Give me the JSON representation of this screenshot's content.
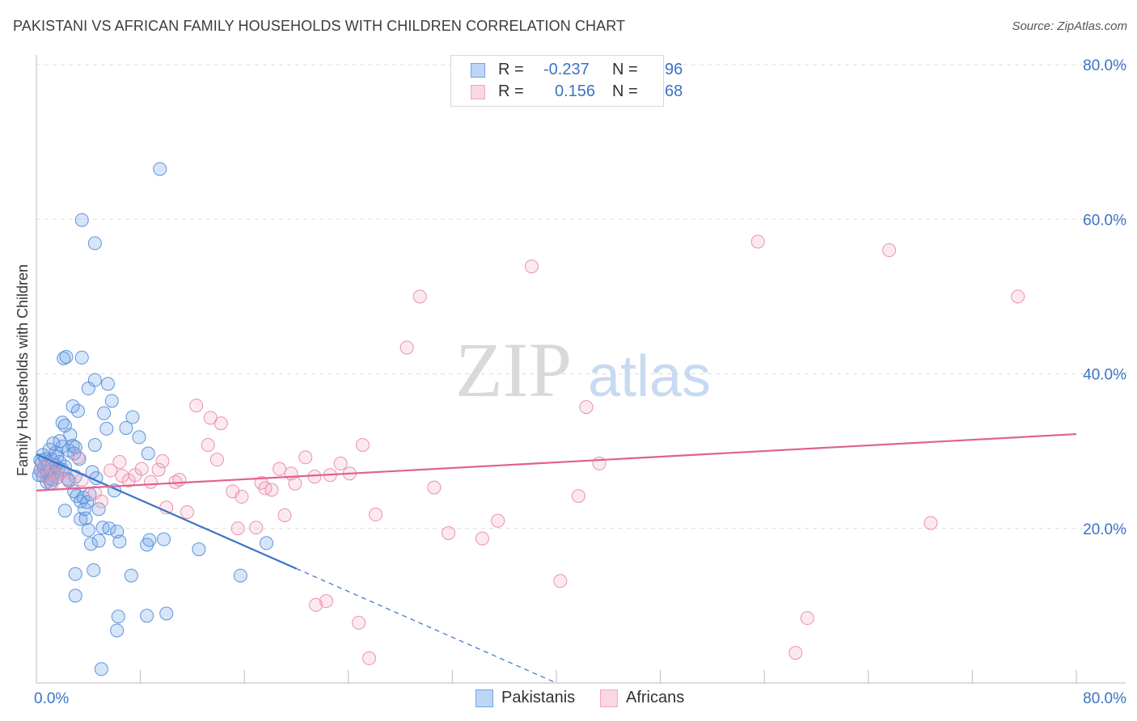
{
  "header": {
    "title": "PAKISTANI VS AFRICAN FAMILY HOUSEHOLDS WITH CHILDREN CORRELATION CHART",
    "source": "Source: ZipAtlas.com"
  },
  "watermark": {
    "zip": "ZIP",
    "atlas": "atlas"
  },
  "legend": {
    "r_label": "R =",
    "n_label": "N =",
    "rows": [
      {
        "r": "-0.237",
        "n": "96",
        "color": "#6fa3e8"
      },
      {
        "r": "0.156",
        "n": "68",
        "color": "#f4a7bf"
      }
    ]
  },
  "bottom_legend": {
    "pakistanis": "Pakistanis",
    "africans": "Africans"
  },
  "colors": {
    "pakistani_fill": "rgba(111,163,232,0.28)",
    "pakistani_stroke": "#5d93dc",
    "african_fill": "rgba(244,167,191,0.25)",
    "african_stroke": "#e892ad",
    "pakistani_line": "#3a73c9",
    "african_line": "#e0628b",
    "axis_label_color": "#3a73c4",
    "grid": "#dcdcdc"
  },
  "chart_data": {
    "type": "scatter",
    "title": "PAKISTANI VS AFRICAN FAMILY HOUSEHOLDS WITH CHILDREN CORRELATION CHART",
    "xlabel": "",
    "ylabel": "Family Households with Children",
    "xlim": [
      0,
      80
    ],
    "ylim": [
      0,
      80
    ],
    "x_tick_labels": [
      "0.0%",
      "80.0%"
    ],
    "y_tick_labels": [
      "20.0%",
      "40.0%",
      "60.0%",
      "80.0%"
    ],
    "y_ticks": [
      20,
      40,
      60,
      80
    ],
    "grid": true,
    "legend_placement": "top-center",
    "series": [
      {
        "name": "Pakistanis",
        "r": -0.237,
        "n": 96,
        "trend": {
          "x_start": 0,
          "y_start": 29.6,
          "x_solid_end": 20,
          "x_end": 40,
          "y_end": 0
        },
        "points": [
          [
            0.3,
            27.5
          ],
          [
            0.4,
            28.5
          ],
          [
            0.5,
            26.8
          ],
          [
            0.6,
            27.9
          ],
          [
            0.7,
            29.0
          ],
          [
            0.8,
            27.2
          ],
          [
            0.9,
            28.3
          ],
          [
            1.0,
            26.5
          ],
          [
            1.1,
            27.7
          ],
          [
            1.2,
            28.9
          ],
          [
            1.3,
            26.9
          ],
          [
            1.4,
            27.4
          ],
          [
            1.5,
            28.1
          ],
          [
            1.6,
            26.6
          ],
          [
            1.7,
            27.8
          ],
          [
            1.8,
            28.6
          ],
          [
            0.5,
            29.5
          ],
          [
            1.0,
            30.2
          ],
          [
            1.5,
            29.8
          ],
          [
            2.0,
            27.6
          ],
          [
            2.2,
            28.0
          ],
          [
            2.4,
            26.4
          ],
          [
            0.8,
            26.0
          ],
          [
            1.2,
            26.3
          ],
          [
            2.0,
            30.6
          ],
          [
            2.5,
            30.1
          ],
          [
            2.8,
            30.7
          ],
          [
            3.0,
            30.5
          ],
          [
            2.9,
            29.7
          ],
          [
            1.8,
            31.3
          ],
          [
            1.3,
            31.0
          ],
          [
            2.6,
            32.1
          ],
          [
            2.0,
            33.7
          ],
          [
            2.2,
            33.3
          ],
          [
            2.8,
            35.8
          ],
          [
            3.2,
            35.2
          ],
          [
            4.0,
            38.1
          ],
          [
            4.5,
            39.2
          ],
          [
            5.5,
            38.7
          ],
          [
            5.8,
            36.5
          ],
          [
            5.2,
            34.9
          ],
          [
            5.4,
            32.9
          ],
          [
            6.9,
            33.0
          ],
          [
            7.4,
            34.4
          ],
          [
            7.9,
            31.8
          ],
          [
            4.5,
            30.8
          ],
          [
            2.1,
            42.0
          ],
          [
            2.3,
            42.2
          ],
          [
            3.5,
            42.1
          ],
          [
            4.3,
            27.3
          ],
          [
            4.6,
            26.5
          ],
          [
            3.0,
            26.7
          ],
          [
            3.1,
            24.2
          ],
          [
            3.6,
            24.0
          ],
          [
            3.4,
            23.5
          ],
          [
            3.9,
            23.4
          ],
          [
            2.2,
            22.3
          ],
          [
            3.7,
            22.5
          ],
          [
            4.8,
            22.5
          ],
          [
            3.4,
            21.2
          ],
          [
            3.8,
            21.3
          ],
          [
            4.0,
            19.8
          ],
          [
            5.1,
            20.1
          ],
          [
            5.6,
            20.0
          ],
          [
            6.2,
            19.6
          ],
          [
            4.2,
            18.0
          ],
          [
            4.8,
            18.4
          ],
          [
            6.4,
            18.3
          ],
          [
            8.7,
            18.5
          ],
          [
            8.5,
            17.9
          ],
          [
            9.8,
            18.6
          ],
          [
            12.5,
            17.3
          ],
          [
            17.7,
            18.1
          ],
          [
            3.0,
            14.1
          ],
          [
            4.4,
            14.6
          ],
          [
            7.3,
            13.9
          ],
          [
            15.7,
            13.9
          ],
          [
            3.0,
            11.3
          ],
          [
            6.3,
            8.6
          ],
          [
            8.5,
            8.7
          ],
          [
            10.0,
            9.0
          ],
          [
            6.2,
            6.8
          ],
          [
            5.0,
            1.8
          ],
          [
            3.5,
            59.9
          ],
          [
            4.5,
            56.9
          ],
          [
            9.5,
            66.5
          ],
          [
            2.9,
            24.8
          ],
          [
            4.1,
            24.4
          ],
          [
            6.0,
            24.9
          ],
          [
            8.6,
            29.7
          ],
          [
            0.2,
            26.9
          ],
          [
            0.3,
            28.8
          ],
          [
            1.6,
            29.3
          ],
          [
            2.5,
            26.2
          ],
          [
            3.3,
            29.0
          ],
          [
            1.1,
            25.9
          ]
        ]
      },
      {
        "name": "Africans",
        "r": 0.156,
        "n": 68,
        "trend": {
          "x_start": 0,
          "y_start": 24.9,
          "x_end": 80,
          "y_end": 32.2
        },
        "points": [
          [
            0.5,
            27.8
          ],
          [
            0.8,
            26.6
          ],
          [
            1.0,
            28.2
          ],
          [
            1.5,
            26.9
          ],
          [
            2.0,
            27.3
          ],
          [
            2.5,
            26.1
          ],
          [
            3.2,
            29.2
          ],
          [
            3.5,
            26.3
          ],
          [
            4.5,
            24.6
          ],
          [
            5.0,
            23.5
          ],
          [
            5.7,
            27.5
          ],
          [
            6.4,
            28.6
          ],
          [
            6.6,
            26.8
          ],
          [
            7.1,
            26.2
          ],
          [
            7.6,
            26.9
          ],
          [
            8.1,
            27.7
          ],
          [
            8.8,
            26.0
          ],
          [
            9.4,
            27.6
          ],
          [
            9.7,
            28.7
          ],
          [
            10.0,
            22.7
          ],
          [
            10.7,
            26.0
          ],
          [
            11.0,
            26.3
          ],
          [
            11.6,
            22.1
          ],
          [
            12.3,
            35.9
          ],
          [
            13.2,
            30.8
          ],
          [
            13.4,
            34.3
          ],
          [
            13.9,
            28.9
          ],
          [
            14.2,
            33.6
          ],
          [
            15.1,
            24.8
          ],
          [
            15.5,
            20.0
          ],
          [
            15.8,
            24.1
          ],
          [
            16.9,
            20.1
          ],
          [
            17.3,
            25.9
          ],
          [
            17.6,
            25.2
          ],
          [
            18.1,
            25.0
          ],
          [
            18.7,
            27.7
          ],
          [
            19.1,
            21.7
          ],
          [
            19.6,
            27.1
          ],
          [
            19.9,
            25.8
          ],
          [
            20.7,
            29.2
          ],
          [
            21.4,
            26.7
          ],
          [
            21.5,
            10.1
          ],
          [
            22.3,
            10.6
          ],
          [
            22.6,
            26.9
          ],
          [
            23.4,
            28.4
          ],
          [
            24.1,
            27.1
          ],
          [
            24.8,
            7.8
          ],
          [
            25.1,
            30.8
          ],
          [
            25.6,
            3.2
          ],
          [
            26.1,
            21.8
          ],
          [
            28.5,
            43.4
          ],
          [
            29.5,
            50.0
          ],
          [
            30.6,
            25.3
          ],
          [
            31.7,
            19.4
          ],
          [
            34.3,
            18.7
          ],
          [
            35.5,
            21.0
          ],
          [
            38.1,
            53.9
          ],
          [
            40.3,
            13.2
          ],
          [
            41.7,
            24.2
          ],
          [
            42.3,
            35.7
          ],
          [
            43.3,
            28.4
          ],
          [
            55.5,
            57.1
          ],
          [
            58.4,
            3.9
          ],
          [
            59.3,
            8.4
          ],
          [
            65.6,
            56.0
          ],
          [
            68.8,
            20.7
          ],
          [
            75.5,
            50.0
          ],
          [
            1.2,
            25.8
          ]
        ]
      }
    ]
  }
}
